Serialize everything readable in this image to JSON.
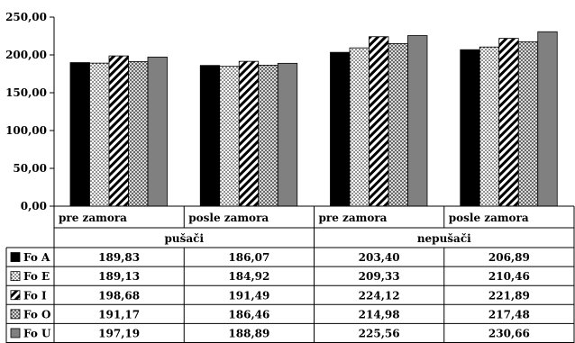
{
  "chart_data": {
    "type": "bar",
    "ylim": [
      0,
      250
    ],
    "yticks": [
      "0,00",
      "50,00",
      "100,00",
      "150,00",
      "200,00",
      "250,00"
    ],
    "tick_values": [
      0,
      50,
      100,
      150,
      200,
      250
    ],
    "groups": [
      {
        "label": "pušači",
        "span": [
          0,
          1
        ]
      },
      {
        "label": "nepušači",
        "span": [
          2,
          3
        ]
      }
    ],
    "categories": [
      "pre zamora",
      "posle zamora",
      "pre zamora",
      "posle zamora"
    ],
    "series": [
      {
        "name": "Fo A",
        "pattern": "solid-black",
        "values": [
          189.83,
          186.07,
          203.4,
          206.89
        ],
        "labels": [
          "189,83",
          "186,07",
          "203,40",
          "206,89"
        ]
      },
      {
        "name": "Fo E",
        "pattern": "dots",
        "values": [
          189.13,
          184.92,
          209.33,
          210.46
        ],
        "labels": [
          "189,13",
          "184,92",
          "209,33",
          "210,46"
        ]
      },
      {
        "name": "Fo I",
        "pattern": "diagonal",
        "values": [
          198.68,
          191.49,
          224.12,
          221.89
        ],
        "labels": [
          "198,68",
          "191,49",
          "224,12",
          "221,89"
        ]
      },
      {
        "name": "Fo O",
        "pattern": "checker",
        "values": [
          191.17,
          186.46,
          214.98,
          217.48
        ],
        "labels": [
          "191,17",
          "186,46",
          "214,98",
          "217,48"
        ]
      },
      {
        "name": "Fo U",
        "pattern": "solid-gray",
        "values": [
          197.19,
          188.89,
          225.56,
          230.66
        ],
        "labels": [
          "197,19",
          "188,89",
          "225,56",
          "230,66"
        ]
      }
    ],
    "grid": false,
    "legend": "table-left"
  }
}
